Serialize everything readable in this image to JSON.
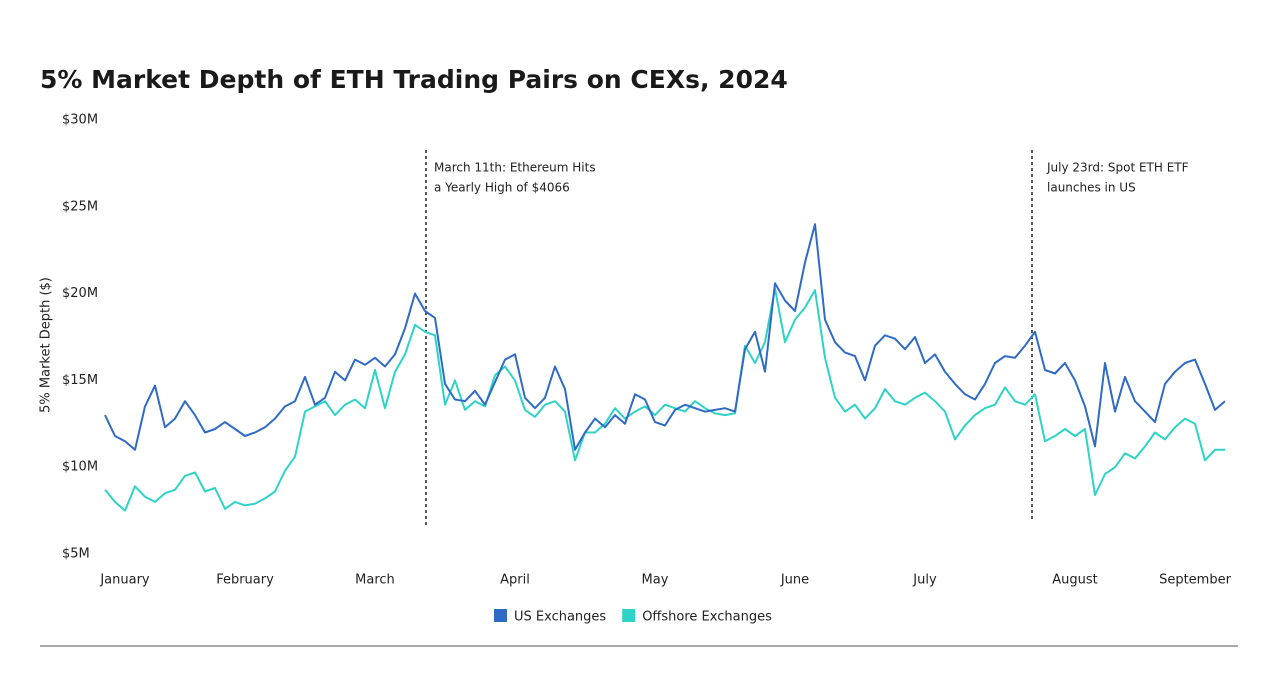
{
  "chart_data": {
    "type": "line",
    "title": "5% Market Depth of ETH Trading Pairs on CEXs, 2024",
    "y_label": "5% Market Depth ($)",
    "categories": [
      null,
      null,
      "January",
      null,
      null,
      null,
      null,
      null,
      null,
      null,
      null,
      null,
      null,
      null,
      "February",
      null,
      null,
      null,
      null,
      null,
      null,
      null,
      null,
      null,
      null,
      null,
      null,
      "March",
      null,
      null,
      null,
      null,
      null,
      null,
      null,
      null,
      null,
      null,
      null,
      null,
      null,
      "April",
      null,
      null,
      null,
      null,
      null,
      null,
      null,
      null,
      null,
      null,
      null,
      null,
      null,
      "May",
      null,
      null,
      null,
      null,
      null,
      null,
      null,
      null,
      null,
      null,
      null,
      null,
      null,
      "June",
      null,
      null,
      null,
      null,
      null,
      null,
      null,
      null,
      null,
      null,
      null,
      null,
      "July",
      null,
      null,
      null,
      null,
      null,
      null,
      null,
      null,
      null,
      null,
      null,
      null,
      null,
      null,
      "August",
      null,
      null,
      null,
      null,
      null,
      null,
      null,
      null,
      null,
      null,
      null,
      "September",
      null,
      null,
      null
    ],
    "series": [
      {
        "name": "US Exchanges",
        "color": "#2f6bc4",
        "values": [
          13.0,
          11.8,
          11.5,
          11.0,
          13.5,
          14.7,
          12.3,
          12.8,
          13.8,
          13.0,
          12.0,
          12.2,
          12.6,
          12.2,
          11.8,
          12.0,
          12.3,
          12.8,
          13.5,
          13.8,
          15.2,
          13.6,
          14.0,
          15.5,
          15.0,
          16.2,
          15.9,
          16.3,
          15.8,
          16.5,
          18.0,
          20.0,
          19.0,
          18.6,
          14.8,
          13.9,
          13.8,
          14.4,
          13.6,
          14.9,
          16.2,
          16.5,
          14.0,
          13.4,
          14.0,
          15.8,
          14.5,
          11.0,
          12.0,
          12.8,
          12.3,
          13.0,
          12.5,
          14.2,
          13.9,
          12.6,
          12.4,
          13.3,
          13.6,
          13.4,
          13.2,
          13.3,
          13.4,
          13.2,
          16.8,
          17.8,
          15.5,
          20.6,
          19.6,
          19.0,
          21.8,
          24.0,
          18.5,
          17.2,
          16.6,
          16.4,
          15.0,
          17.0,
          17.6,
          17.4,
          16.8,
          17.5,
          16.0,
          16.5,
          15.5,
          14.8,
          14.2,
          13.9,
          14.8,
          16.0,
          16.4,
          16.3,
          17.0,
          17.8,
          15.6,
          15.4,
          16.0,
          15.0,
          13.5,
          11.2,
          16.0,
          13.2,
          15.2,
          13.8,
          13.2,
          12.6,
          14.8,
          15.5,
          16.0,
          16.2,
          14.8,
          13.3,
          13.8
        ]
      },
      {
        "name": "Offshore Exchanges",
        "color": "#2ed3c6",
        "values": [
          8.7,
          8.0,
          7.5,
          8.9,
          8.3,
          8.0,
          8.5,
          8.7,
          9.5,
          9.7,
          8.6,
          8.8,
          7.6,
          8.0,
          7.8,
          7.9,
          8.2,
          8.6,
          9.8,
          10.6,
          13.2,
          13.5,
          13.8,
          13.0,
          13.6,
          13.9,
          13.4,
          15.6,
          13.4,
          15.5,
          16.5,
          18.2,
          17.8,
          17.6,
          13.6,
          15.0,
          13.3,
          13.8,
          13.5,
          15.3,
          15.8,
          15.0,
          13.3,
          12.9,
          13.6,
          13.8,
          13.2,
          10.4,
          12.0,
          12.0,
          12.5,
          13.4,
          12.8,
          13.2,
          13.5,
          13.0,
          13.6,
          13.4,
          13.2,
          13.8,
          13.4,
          13.1,
          13.0,
          13.1,
          17.0,
          16.0,
          17.2,
          20.3,
          17.2,
          18.5,
          19.2,
          20.2,
          16.3,
          14.0,
          13.2,
          13.6,
          12.8,
          13.4,
          14.5,
          13.8,
          13.6,
          14.0,
          14.3,
          13.8,
          13.2,
          11.6,
          12.4,
          13.0,
          13.4,
          13.6,
          14.6,
          13.8,
          13.6,
          14.2,
          11.5,
          11.8,
          12.2,
          11.8,
          12.2,
          8.4,
          9.6,
          10.0,
          10.8,
          10.5,
          11.2,
          12.0,
          11.6,
          12.3,
          12.8,
          12.5,
          10.4,
          11.0,
          11.0
        ]
      }
    ],
    "ylim": [
      5,
      30
    ],
    "yticks": [
      {
        "value": 5,
        "label": "$5M"
      },
      {
        "value": 10,
        "label": "$10M"
      },
      {
        "value": 15,
        "label": "$15M"
      },
      {
        "value": 20,
        "label": "$20M"
      },
      {
        "value": 25,
        "label": "$25M"
      },
      {
        "value": 30,
        "label": "$30M"
      }
    ],
    "grid": false,
    "legend": "bottom",
    "annotations": [
      {
        "lines": [
          "March 11th: Ethereum Hits",
          "a Yearly High of $4066"
        ]
      },
      {
        "lines": [
          "July 23rd: Spot ETH ETF",
          "launches in US"
        ]
      }
    ]
  }
}
